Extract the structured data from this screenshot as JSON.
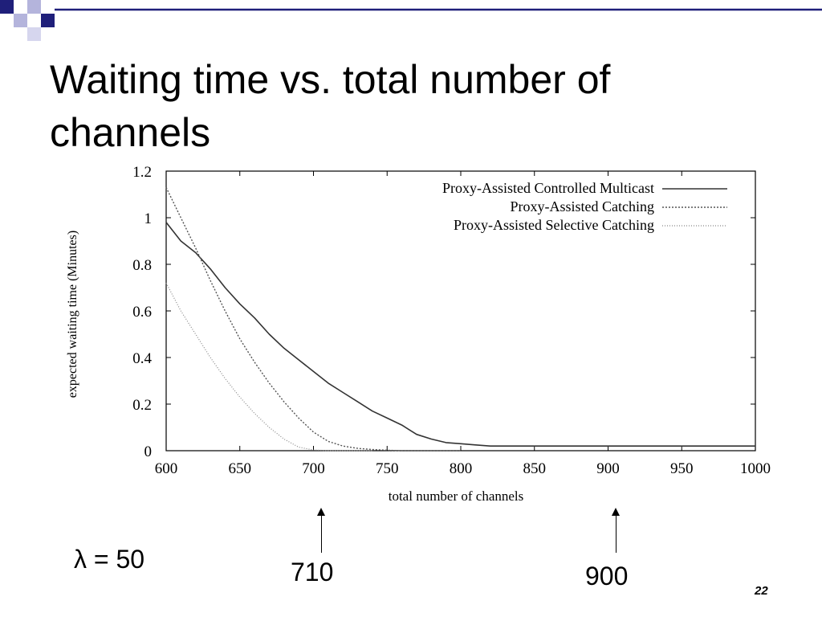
{
  "slide": {
    "title": "Waiting time vs. total number of channels",
    "page_number": "22",
    "accent_color": "#1f1f7a"
  },
  "annotations": {
    "lambda": "λ = 50",
    "marker_a": "710",
    "marker_b": "900"
  },
  "chart_data": {
    "type": "line",
    "xlabel": "total number of channels",
    "ylabel": "expected waiting time (Minutes)",
    "xlim": [
      600,
      1000
    ],
    "ylim": [
      0,
      1.2
    ],
    "xticks": [
      600,
      650,
      700,
      750,
      800,
      850,
      900,
      950,
      1000
    ],
    "yticks": [
      0,
      0.2,
      0.4,
      0.6,
      0.8,
      1,
      1.2
    ],
    "ytick_labels": [
      "0",
      "0.2",
      "0.4",
      "0.6",
      "0.8",
      "1",
      "1.2"
    ],
    "legend": "top-right",
    "grid": false,
    "series": [
      {
        "name": "Proxy-Assisted Controlled Multicast",
        "color": "#333333",
        "x": [
          600,
          610,
          620,
          630,
          640,
          650,
          660,
          670,
          680,
          690,
          700,
          710,
          720,
          730,
          740,
          750,
          760,
          770,
          780,
          790,
          800,
          810,
          820,
          850,
          900,
          950,
          1000
        ],
        "y": [
          0.98,
          0.9,
          0.85,
          0.78,
          0.7,
          0.63,
          0.57,
          0.5,
          0.44,
          0.39,
          0.34,
          0.29,
          0.25,
          0.21,
          0.17,
          0.14,
          0.11,
          0.07,
          0.05,
          0.035,
          0.03,
          0.025,
          0.02,
          0.02,
          0.02,
          0.02,
          0.02
        ]
      },
      {
        "name": "Proxy-Assisted Catching",
        "color": "#555555",
        "x": [
          600,
          610,
          620,
          630,
          640,
          650,
          660,
          670,
          680,
          690,
          700,
          710,
          720,
          730,
          740,
          750,
          760,
          780,
          800
        ],
        "y": [
          1.13,
          1.0,
          0.87,
          0.73,
          0.6,
          0.48,
          0.38,
          0.29,
          0.21,
          0.14,
          0.08,
          0.04,
          0.02,
          0.01,
          0.005,
          0.002,
          0,
          0,
          0
        ]
      },
      {
        "name": "Proxy-Assisted Selective Catching",
        "color": "#888888",
        "x": [
          600,
          610,
          620,
          630,
          640,
          650,
          660,
          670,
          680,
          690,
          700,
          710,
          720,
          740
        ],
        "y": [
          0.72,
          0.6,
          0.5,
          0.4,
          0.31,
          0.23,
          0.16,
          0.1,
          0.05,
          0.015,
          0.003,
          0,
          0,
          0
        ]
      }
    ]
  }
}
